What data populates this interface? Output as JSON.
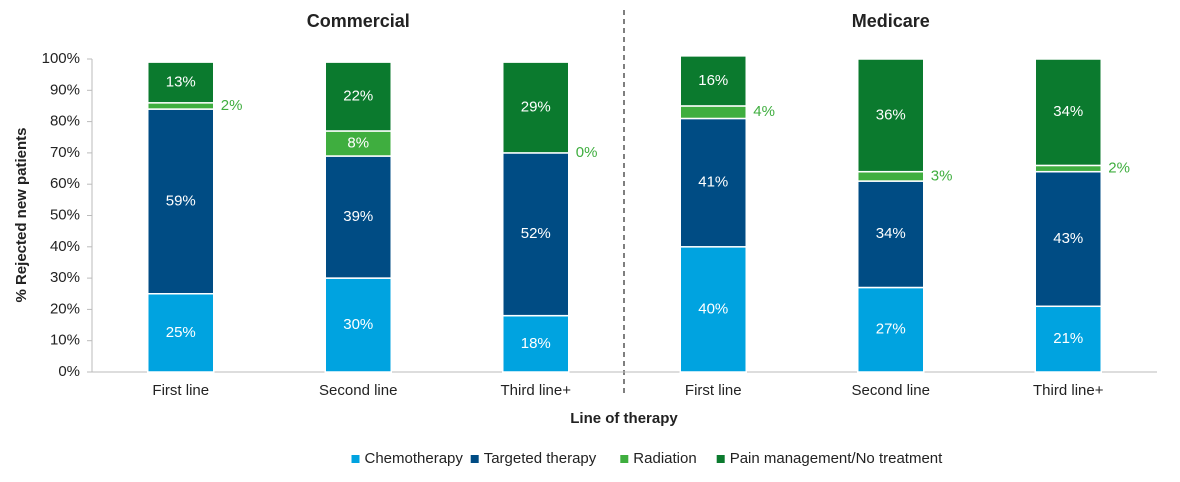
{
  "chart_data": {
    "type": "bar",
    "stacked": true,
    "y_label": "% Rejected new patients",
    "x_label": "Line of therapy",
    "groups": [
      {
        "name": "Commercial",
        "categories": [
          "First line",
          "Second line",
          "Third line+"
        ]
      },
      {
        "name": "Medicare",
        "categories": [
          "First line",
          "Second line",
          "Third line+"
        ]
      }
    ],
    "series": [
      {
        "name": "Chemotherapy",
        "color": "#00a3e0",
        "values": [
          25,
          30,
          18,
          40,
          27,
          21
        ],
        "value_labels": [
          "25%",
          "30%",
          "18%",
          "40%",
          "27%",
          "21%"
        ]
      },
      {
        "name": "Targeted therapy",
        "color": "#004c84",
        "values": [
          59,
          39,
          52,
          41,
          34,
          43
        ],
        "value_labels": [
          "59%",
          "39%",
          "52%",
          "41%",
          "34%",
          "43%"
        ]
      },
      {
        "name": "Radiation",
        "color": "#3fae3f",
        "values": [
          2,
          8,
          0,
          4,
          3,
          2
        ],
        "value_labels": [
          "2%",
          "8%",
          "0%",
          "4%",
          "3%",
          "2%"
        ]
      },
      {
        "name": "Pain management/No treatment",
        "color": "#0b7a2e",
        "values": [
          13,
          22,
          29,
          16,
          36,
          34
        ],
        "value_labels": [
          "13%",
          "22%",
          "29%",
          "16%",
          "36%",
          "34%"
        ]
      }
    ],
    "ylim": [
      0,
      100
    ],
    "yticks": [
      {
        "value": 0,
        "label": "0%"
      },
      {
        "value": 10,
        "label": "10%"
      },
      {
        "value": 20,
        "label": "20%"
      },
      {
        "value": 30,
        "label": "30%"
      },
      {
        "value": 40,
        "label": "40%"
      },
      {
        "value": 50,
        "label": "50%"
      },
      {
        "value": 60,
        "label": "60%"
      },
      {
        "value": 70,
        "label": "70%"
      },
      {
        "value": 80,
        "label": "80%"
      },
      {
        "value": 90,
        "label": "90%"
      },
      {
        "value": 100,
        "label": "100%"
      }
    ],
    "legend": "bottom"
  }
}
